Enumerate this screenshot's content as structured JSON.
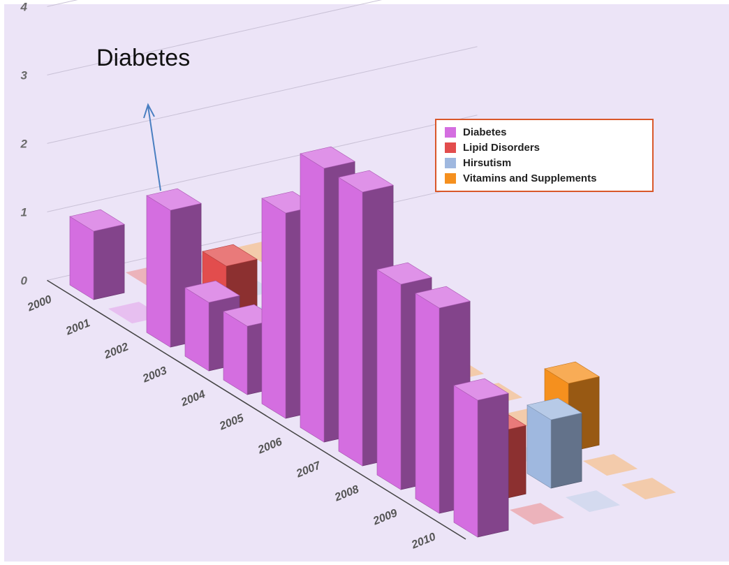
{
  "chart_data": {
    "type": "bar",
    "title": "",
    "annotation": "Diabetes",
    "categories": [
      "2000",
      "2001",
      "2002",
      "2003",
      "2004",
      "2005",
      "2006",
      "2007",
      "2008",
      "2009",
      "2010"
    ],
    "y_ticks": [
      "0",
      "1",
      "2",
      "3",
      "4"
    ],
    "ylim": [
      0,
      4
    ],
    "grid": true,
    "legend_position": "top-right",
    "series": [
      {
        "name": "Diabetes",
        "color": "#d46ee0",
        "values": [
          1,
          0,
          2,
          1,
          1,
          3,
          4,
          4,
          3,
          3,
          2
        ]
      },
      {
        "name": "Lipid Disorders",
        "color": "#e24d4d",
        "values": [
          0,
          0,
          1,
          0,
          0,
          0,
          2,
          0,
          1,
          1,
          0
        ]
      },
      {
        "name": "Hirsutism",
        "color": "#9fb8df",
        "values": [
          0,
          0,
          0,
          0,
          0,
          0,
          0,
          0,
          0,
          1,
          0
        ]
      },
      {
        "name": "Vitamins and Supplements",
        "color": "#f5901e",
        "values": [
          0,
          0,
          0,
          0,
          0,
          0,
          0,
          0,
          1,
          0,
          0
        ]
      }
    ]
  }
}
